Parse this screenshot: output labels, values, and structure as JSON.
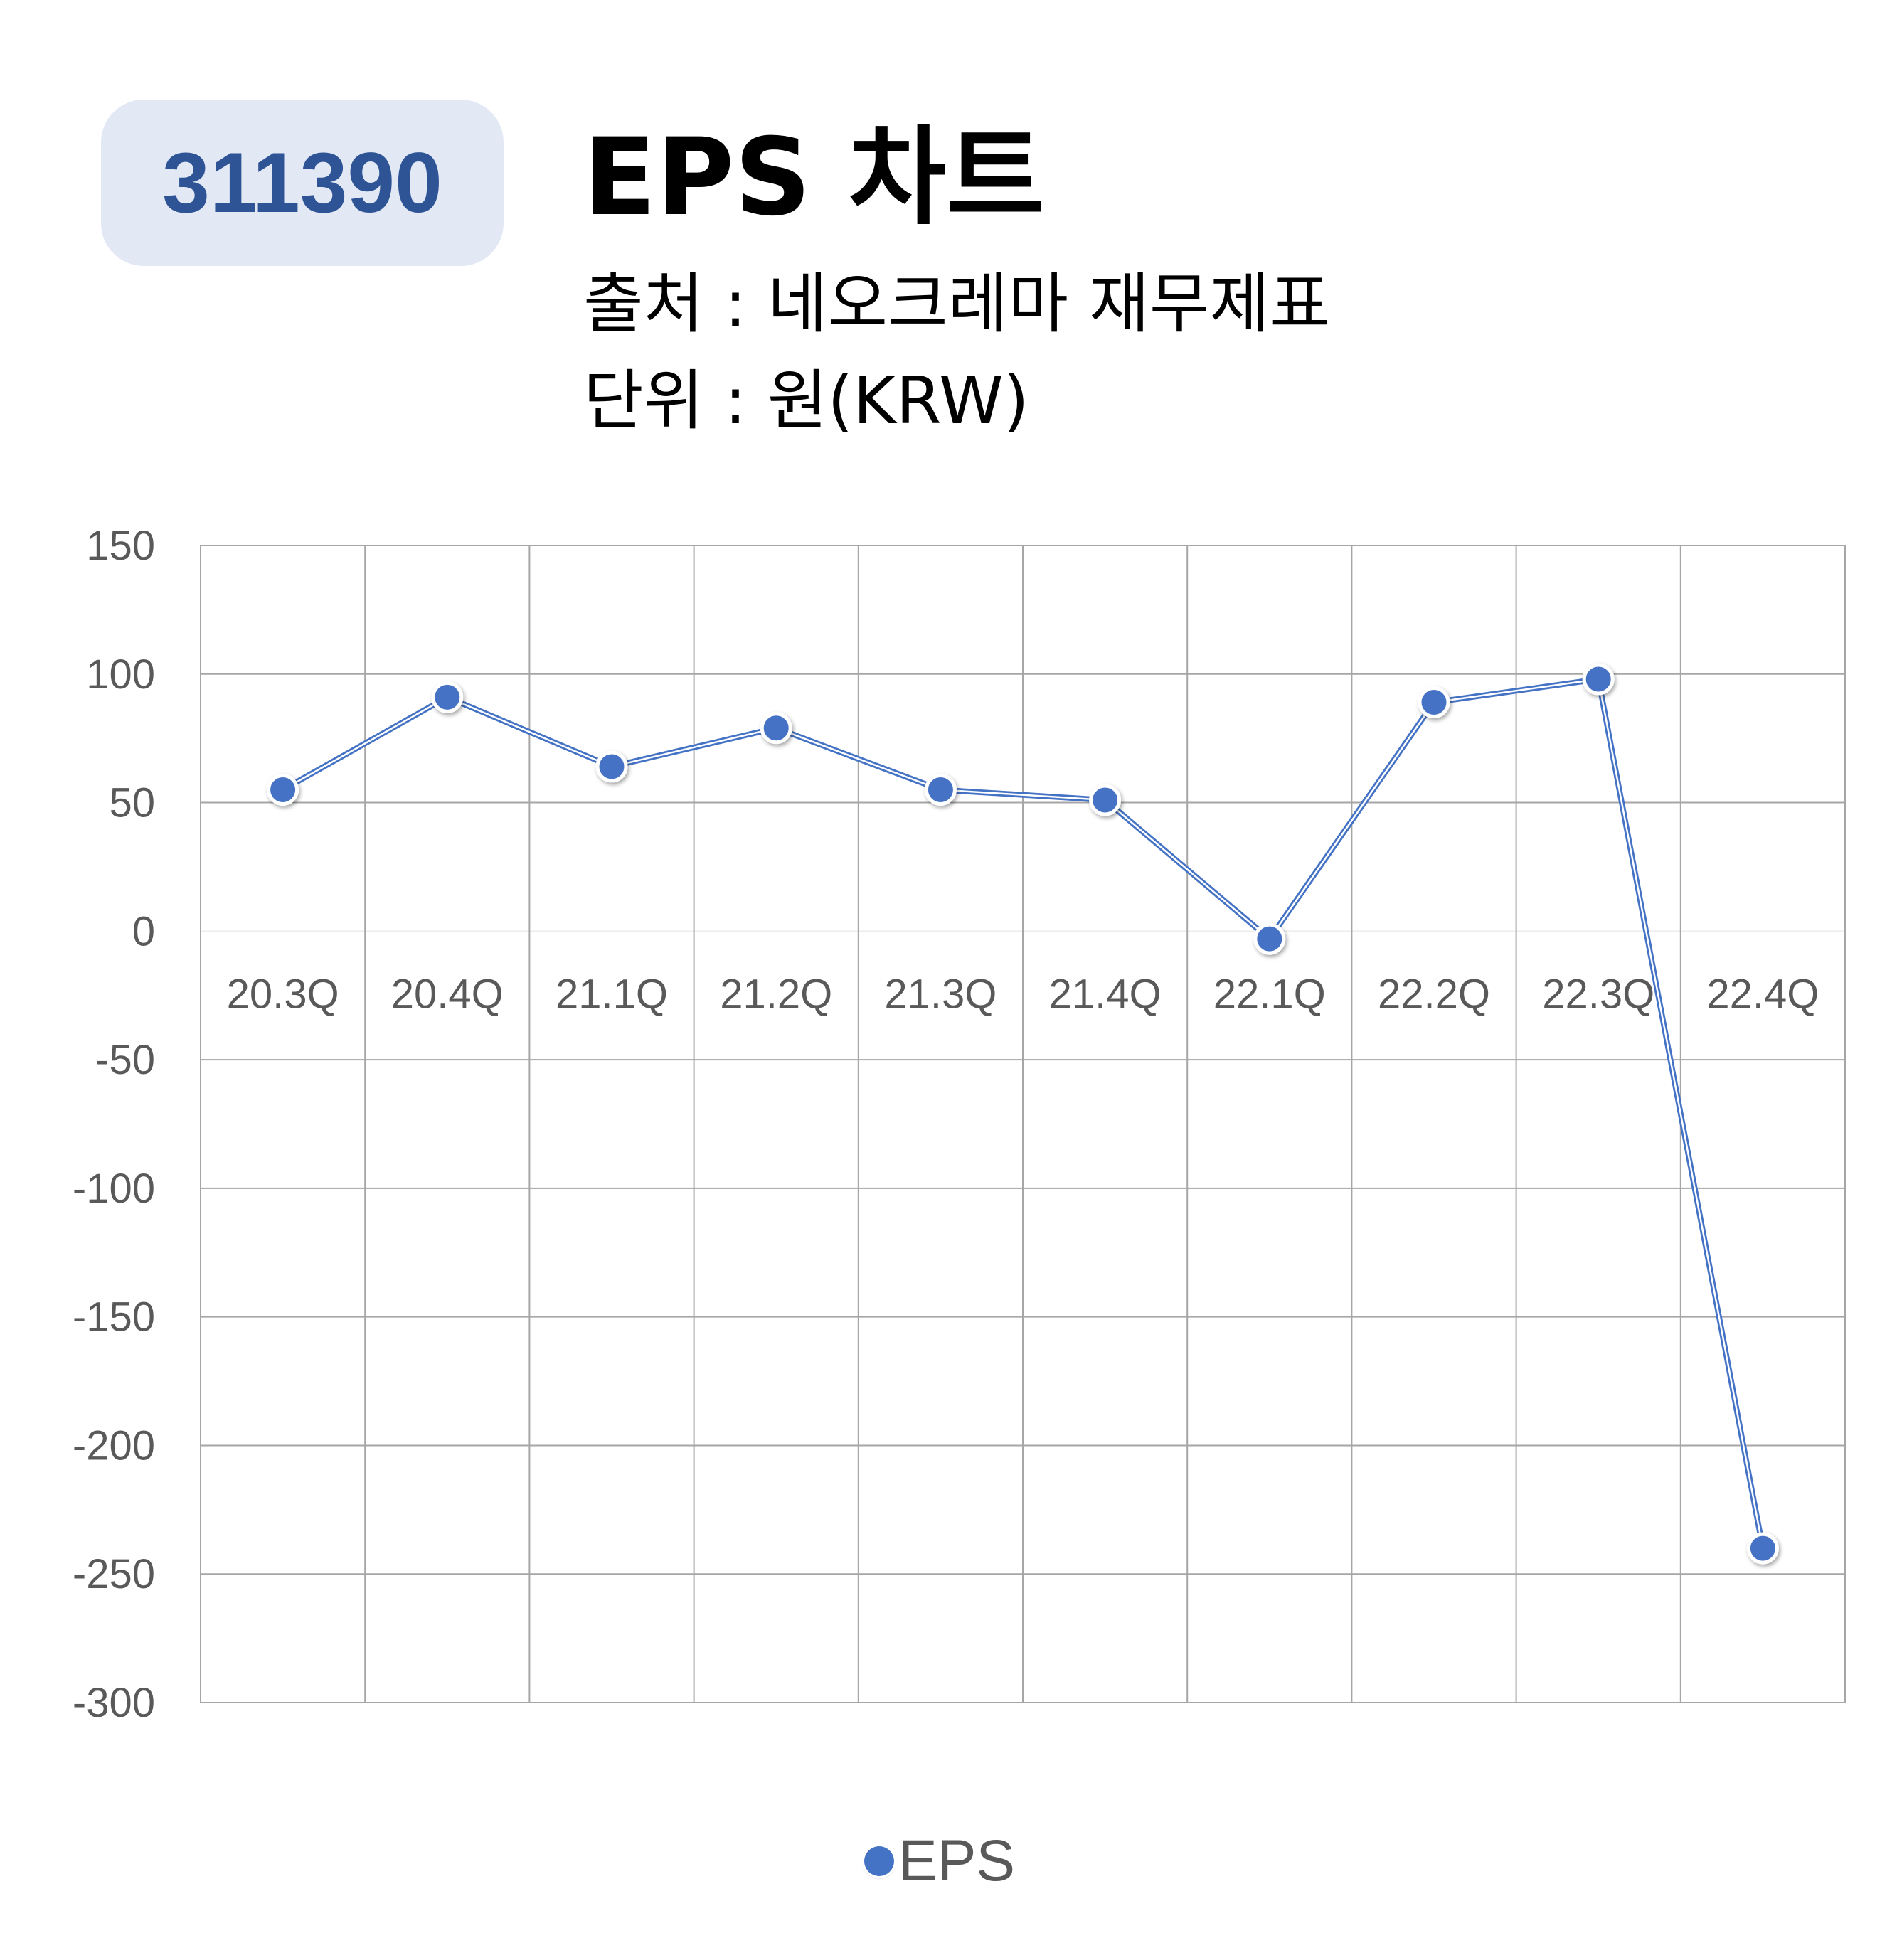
{
  "header": {
    "code": "311390",
    "title": "EPS 차트",
    "source": "출처 : 네오크레마 재무제표",
    "unit": "단위 : 원(KRW)"
  },
  "legend": {
    "label": "EPS"
  },
  "colors": {
    "series": "#4472c4",
    "badge_bg": "#e2e9f5",
    "badge_text": "#2f5496",
    "grid": "#a6a6a6"
  },
  "chart_data": {
    "type": "line",
    "categories": [
      "20.3Q",
      "20.4Q",
      "21.1Q",
      "21.2Q",
      "21.3Q",
      "21.4Q",
      "22.1Q",
      "22.2Q",
      "22.3Q",
      "22.4Q"
    ],
    "series": [
      {
        "name": "EPS",
        "values": [
          55,
          91,
          64,
          79,
          55,
          51,
          -3,
          89,
          98,
          -240
        ]
      }
    ],
    "ylim": [
      -300,
      150
    ],
    "yticks": [
      150,
      100,
      50,
      0,
      -50,
      -100,
      -150,
      -200,
      -250,
      -300
    ],
    "grid": true,
    "legend_position": "bottom"
  }
}
